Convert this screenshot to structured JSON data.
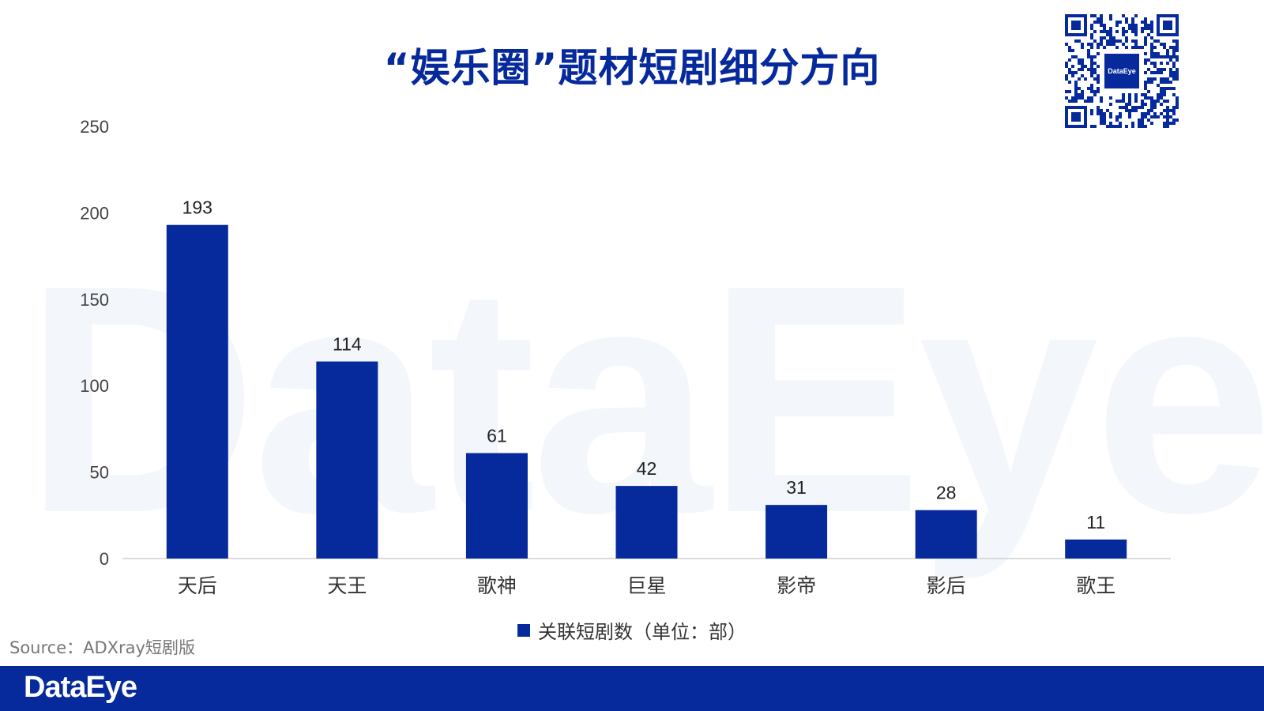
{
  "title": "“娱乐圈”题材短剧细分方向",
  "watermark_text": "DataEye",
  "qr_code": {
    "center_text": "DataEye",
    "color": "#062a9c"
  },
  "source": "Source：ADXray短剧版",
  "footer": {
    "brand": "DataEye",
    "background_color": "#062a9c"
  },
  "chart_data": {
    "type": "bar",
    "categories": [
      "天后",
      "天王",
      "歌神",
      "巨星",
      "影帝",
      "影后",
      "歌王"
    ],
    "series": [
      {
        "name": "关联短剧数（单位：部）",
        "values": [
          193,
          114,
          61,
          42,
          31,
          28,
          11
        ],
        "color": "#062a9c"
      }
    ],
    "ylim": [
      0,
      250
    ],
    "yticks": [
      0,
      50,
      100,
      150,
      200,
      250
    ],
    "grid": false,
    "legend_position": "bottom"
  }
}
